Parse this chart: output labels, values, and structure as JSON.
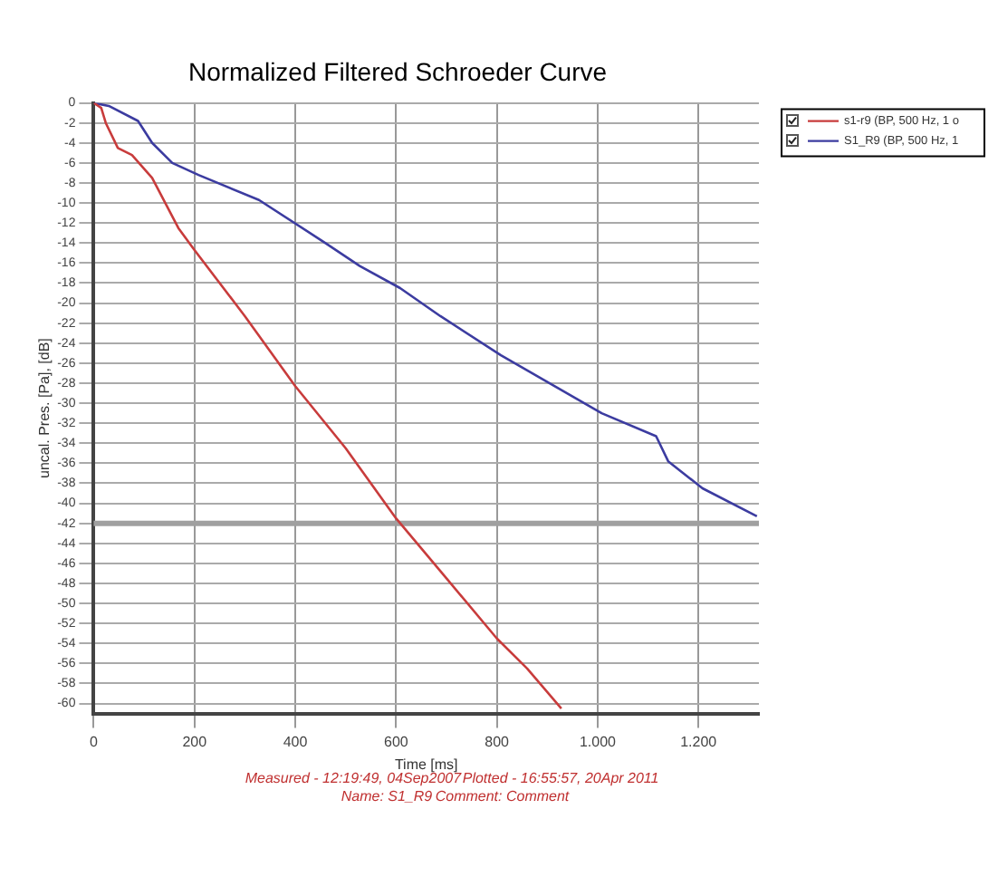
{
  "chart_data": {
    "type": "line",
    "title": "Normalized Filtered Schroeder Curve",
    "xlabel": "Time [ms]",
    "ylabel": "uncal. Pres. [Pa], [dB]",
    "xlim": [
      0,
      1320
    ],
    "xticks": [
      0,
      200,
      400,
      600,
      800,
      {
        "value": 1000,
        "label": "1.000"
      },
      {
        "value": 1200,
        "label": "1.200"
      }
    ],
    "ylim": [
      -61,
      0
    ],
    "yticks": [
      0,
      -2,
      -4,
      -6,
      -8,
      -10,
      -12,
      -14,
      -16,
      -18,
      -20,
      -22,
      -24,
      -26,
      -28,
      -30,
      -32,
      -34,
      -36,
      -38,
      -40,
      -42,
      -44,
      -46,
      -48,
      -50,
      -52,
      -54,
      -56,
      -58,
      -60
    ],
    "grid": true,
    "legend": "top right",
    "marker": "none",
    "line_style": "solid",
    "ref_lines": [
      {
        "axis": "y",
        "value": -42,
        "color": "#a0a0a0"
      }
    ],
    "series": [
      {
        "name": "s1-r9 (BP, 500 Hz, 1 o",
        "color": "#c83c3c",
        "x": [
          0,
          15,
          24,
          48,
          76,
          116,
          168,
          200,
          300,
          400,
          500,
          600,
          700,
          800,
          860,
          928
        ],
        "values": [
          0,
          -0.5,
          -2,
          -4.5,
          -5.2,
          -7.5,
          -12.5,
          -14.7,
          -21.3,
          -28.3,
          -34.5,
          -41.5,
          -47.5,
          -53.5,
          -56.5,
          -60.5
        ]
      },
      {
        "name": "S1_R9 (BP, 500 Hz, 1",
        "color": "#3c3ca0",
        "x": [
          0,
          30,
          88,
          116,
          156,
          208,
          328,
          460,
          528,
          608,
          688,
          808,
          1008,
          1116,
          1140,
          1208,
          1316
        ],
        "values": [
          0,
          -0.3,
          -1.8,
          -4,
          -6,
          -7.2,
          -9.7,
          -14,
          -16.3,
          -18.5,
          -21.3,
          -25.2,
          -31,
          -33.3,
          -35.8,
          -38.5,
          -41.3
        ]
      }
    ],
    "annotations": [
      "Measured - 12:19:49, 04Sep2007",
      "Plotted - 16:55:57, 20Apr 2011",
      "Name: S1_R9",
      "Comment: Comment"
    ]
  }
}
